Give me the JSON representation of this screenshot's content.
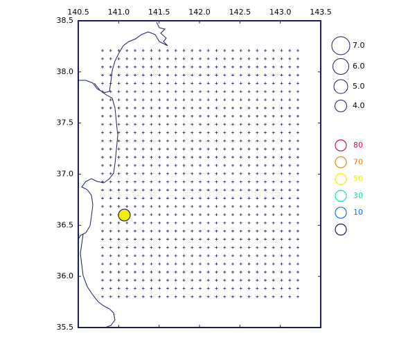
{
  "map": {
    "xlim": [
      140.5,
      143.5
    ],
    "ylim": [
      35.5,
      38.5
    ],
    "xticks": [
      140.5,
      {
        "value": 141,
        "label": "141.0"
      },
      141.5,
      {
        "value": 142,
        "label": "142.0"
      },
      142.5,
      {
        "value": 143,
        "label": "143.0"
      },
      143.5
    ],
    "yticks": [
      35.5,
      {
        "value": 36,
        "label": "36.0"
      },
      36.5,
      {
        "value": 37,
        "label": "37.0"
      },
      37.5,
      {
        "value": 38,
        "label": "38.0"
      },
      38.5
    ],
    "events": [
      {
        "lon": 141.07,
        "lat": 36.6,
        "mag": 4,
        "depth": 50
      }
    ],
    "magnitude_legend": [
      {
        "value": 7,
        "label": "7.0"
      },
      {
        "value": 6,
        "label": "6.0"
      },
      {
        "value": 5,
        "label": "5.0"
      },
      {
        "value": 4,
        "label": "4.0"
      }
    ],
    "depth_legend": [
      {
        "label": 80,
        "color": "#d0105a"
      },
      {
        "label": 70,
        "color": "#f08010"
      },
      {
        "label": 50,
        "color": "#f0f000"
      },
      {
        "label": 30,
        "color": "#10e0a0"
      },
      {
        "label": 10,
        "color": "#1070e0"
      },
      {
        "label": null,
        "color": "#1a1a5e"
      }
    ]
  }
}
